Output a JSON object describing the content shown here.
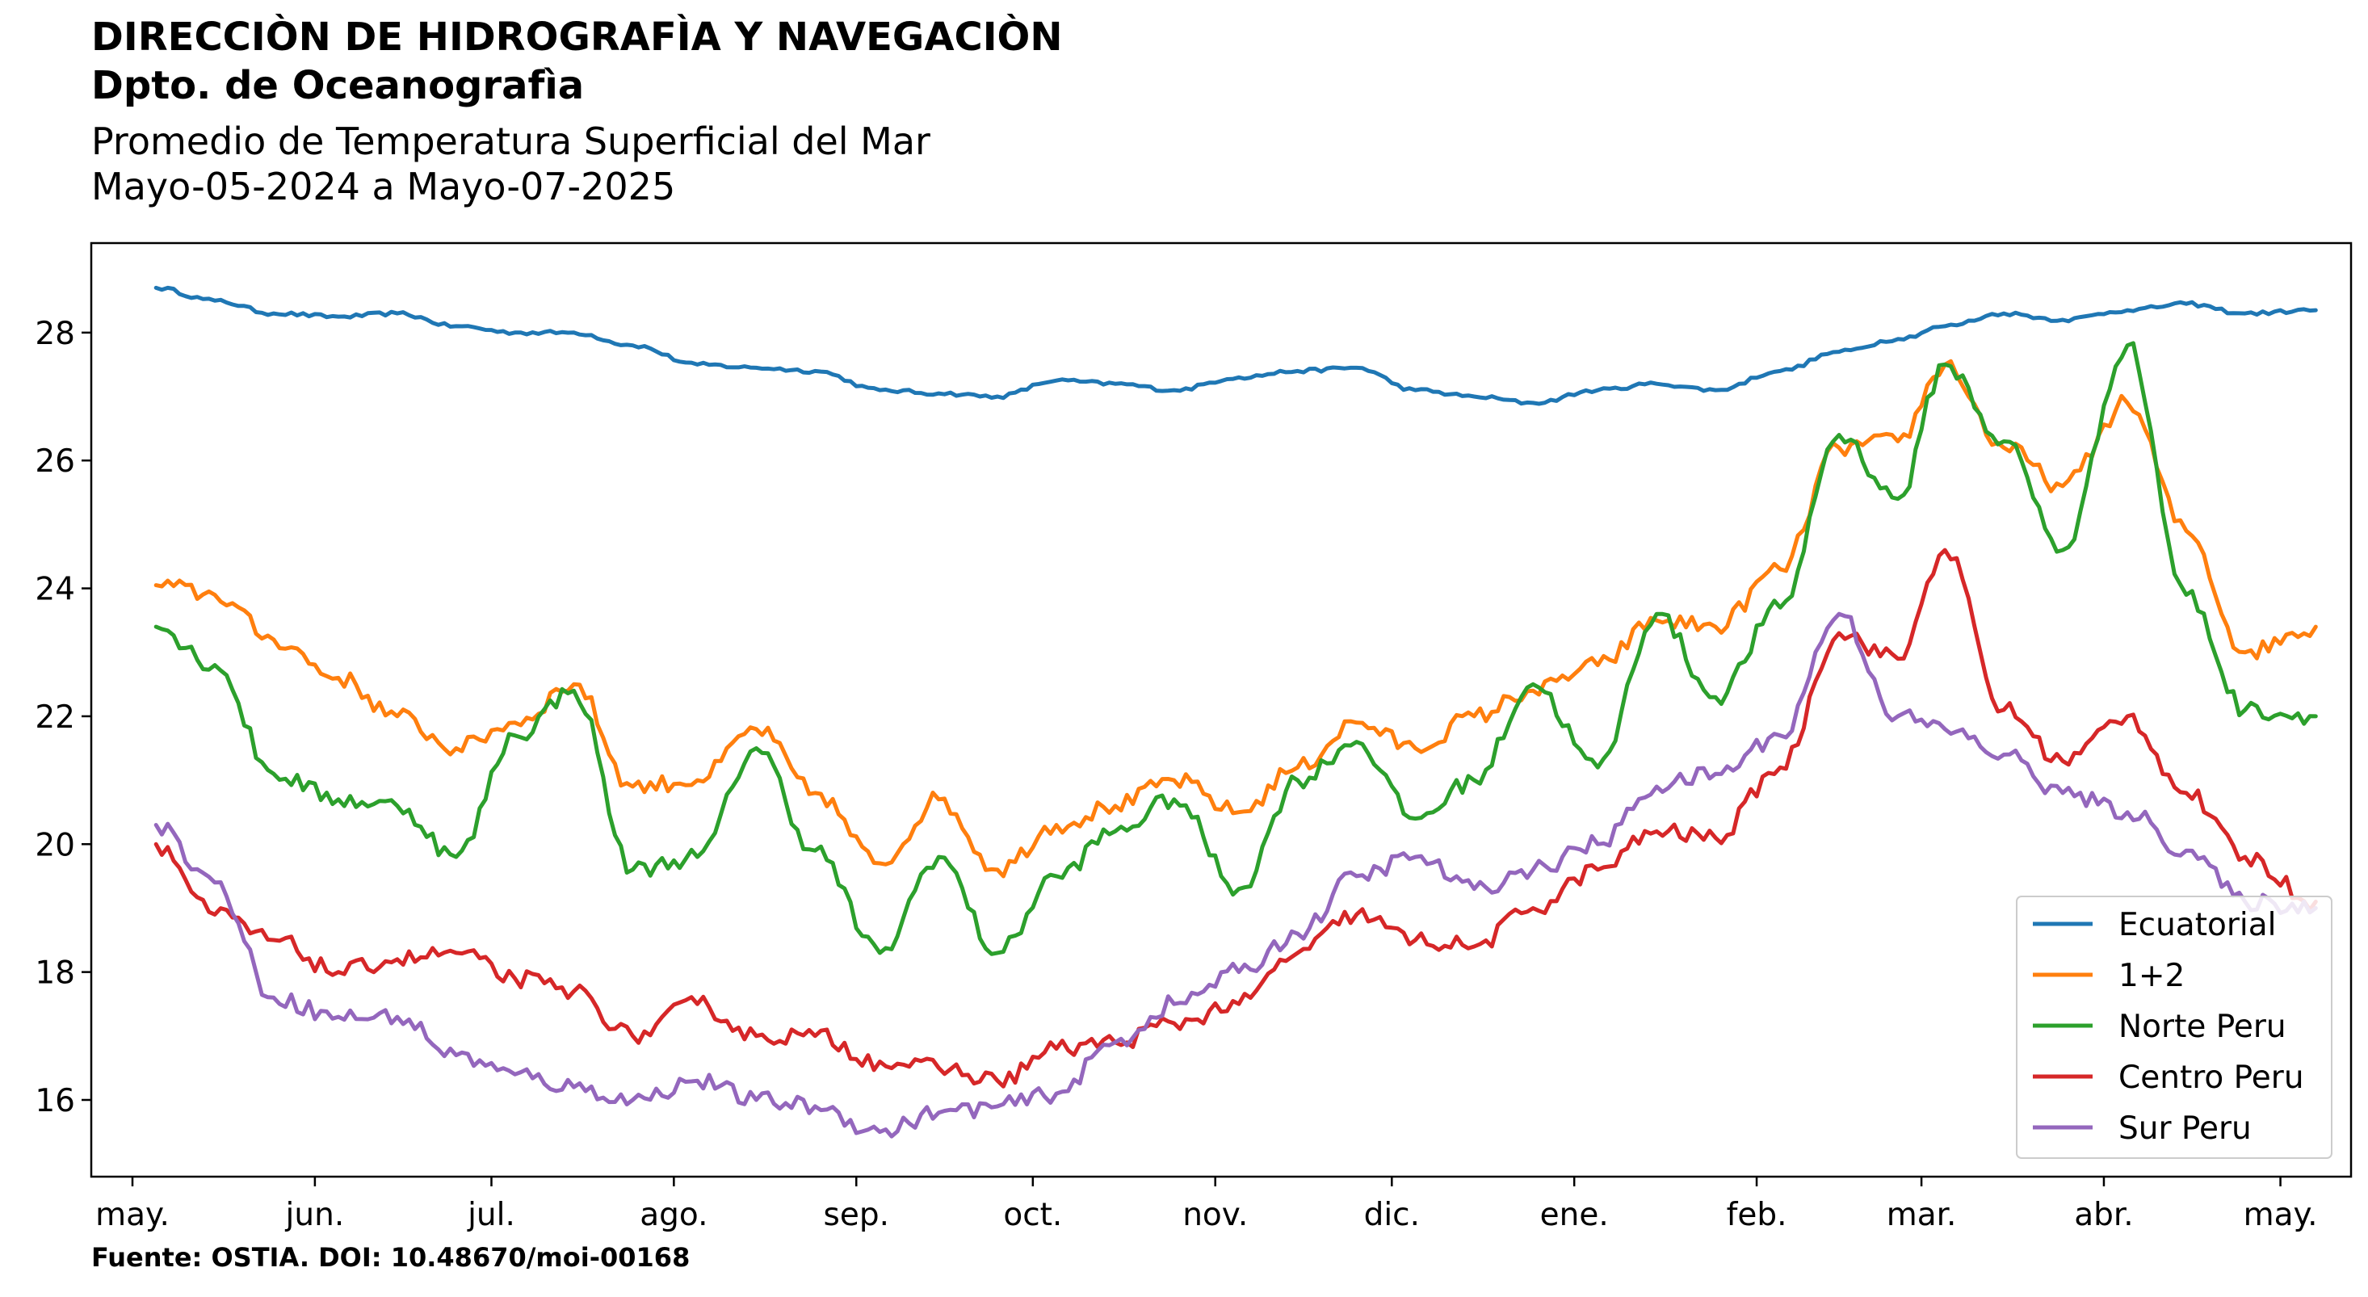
{
  "header": {
    "line1": "DIRECCIÒN DE HIDROGRAFÌA Y NAVEGACIÒN",
    "line2": "Dpto. de Oceanografìa",
    "line3": "Promedio de Temperatura Superficial del Mar",
    "line4": "Mayo-05-2024 a Mayo-07-2025"
  },
  "footer": {
    "source": "Fuente: OSTIA. DOI: 10.48670/moi-00168"
  },
  "chart_data": {
    "type": "line",
    "title": "Promedio de Temperatura Superficial del Mar",
    "subtitle": "Mayo-05-2024 a Mayo-07-2025",
    "xlabel": "",
    "ylabel": "",
    "x_range": [
      "2024-04-24",
      "2025-05-13"
    ],
    "ylim": [
      14.8,
      29.4
    ],
    "yticks": [
      16,
      18,
      20,
      22,
      24,
      26,
      28
    ],
    "xtick_dates": [
      "2024-05-01",
      "2024-06-01",
      "2024-07-01",
      "2024-08-01",
      "2024-09-01",
      "2024-10-01",
      "2024-11-01",
      "2024-12-01",
      "2025-01-01",
      "2025-02-01",
      "2025-03-01",
      "2025-04-01",
      "2025-05-01"
    ],
    "xtick_labels": [
      "may.",
      "jun.",
      "jul.",
      "ago.",
      "sep.",
      "oct.",
      "nov.",
      "dic.",
      "ene.",
      "feb.",
      "mar.",
      "abr.",
      "may."
    ],
    "grid": false,
    "legend_position": "bottom-right",
    "x": [
      "2024-05-05",
      "2024-05-15",
      "2024-05-25",
      "2024-06-05",
      "2024-06-15",
      "2024-06-25",
      "2024-07-05",
      "2024-07-15",
      "2024-07-25",
      "2024-08-05",
      "2024-08-15",
      "2024-08-25",
      "2024-09-05",
      "2024-09-15",
      "2024-09-25",
      "2024-10-05",
      "2024-10-15",
      "2024-10-25",
      "2024-11-05",
      "2024-11-15",
      "2024-11-25",
      "2024-12-05",
      "2024-12-15",
      "2024-12-25",
      "2025-01-05",
      "2025-01-15",
      "2025-01-25",
      "2025-02-05",
      "2025-02-15",
      "2025-02-25",
      "2025-03-05",
      "2025-03-15",
      "2025-03-25",
      "2025-04-05",
      "2025-04-15",
      "2025-04-25",
      "2025-05-07"
    ],
    "series": [
      {
        "name": "Ecuatorial",
        "color": "#1f77b4",
        "values": [
          28.7,
          28.5,
          28.3,
          28.25,
          28.3,
          28.1,
          28.0,
          28.0,
          27.8,
          27.5,
          27.45,
          27.4,
          27.1,
          27.05,
          27.0,
          27.25,
          27.2,
          27.1,
          27.3,
          27.4,
          27.45,
          27.1,
          27.0,
          26.9,
          27.1,
          27.2,
          27.1,
          27.4,
          27.7,
          27.9,
          28.1,
          28.3,
          28.2,
          28.35,
          28.45,
          28.3,
          28.35
        ]
      },
      {
        "name": "1+2",
        "color": "#ff7f0e",
        "values": [
          24.05,
          23.9,
          23.2,
          22.6,
          22.0,
          21.5,
          21.9,
          22.5,
          20.9,
          21.0,
          21.8,
          20.8,
          19.7,
          20.7,
          19.6,
          20.3,
          20.6,
          21.0,
          20.5,
          21.2,
          21.9,
          21.5,
          22.0,
          22.4,
          22.8,
          23.5,
          23.4,
          24.3,
          26.2,
          26.3,
          27.5,
          26.2,
          25.6,
          26.9,
          24.9,
          23.0,
          23.4
        ]
      },
      {
        "name": "Norte Peru",
        "color": "#2ca02c",
        "values": [
          23.4,
          22.8,
          21.1,
          20.7,
          20.6,
          19.8,
          21.7,
          22.4,
          19.6,
          19.8,
          21.5,
          19.9,
          18.3,
          19.8,
          18.3,
          19.5,
          20.2,
          20.7,
          19.3,
          21.0,
          21.6,
          20.4,
          21.0,
          22.5,
          21.2,
          23.6,
          22.3,
          23.7,
          26.4,
          25.4,
          27.5,
          26.3,
          24.6,
          27.8,
          23.9,
          22.1,
          22.0
        ]
      },
      {
        "name": "Centro Peru",
        "color": "#d62728",
        "values": [
          20.0,
          18.9,
          18.5,
          18.0,
          18.2,
          18.3,
          17.9,
          17.7,
          17.0,
          17.5,
          17.0,
          17.0,
          16.6,
          16.5,
          16.3,
          16.8,
          16.9,
          17.2,
          17.5,
          18.3,
          18.9,
          18.5,
          18.4,
          19.0,
          19.6,
          20.2,
          20.1,
          21.2,
          23.3,
          22.9,
          24.6,
          22.1,
          21.3,
          22.0,
          20.8,
          19.8,
          19.1
        ]
      },
      {
        "name": "Sur Peru",
        "color": "#9467bd",
        "values": [
          20.3,
          19.4,
          17.6,
          17.3,
          17.3,
          16.7,
          16.4,
          16.2,
          16.0,
          16.3,
          16.0,
          15.9,
          15.5,
          15.8,
          15.9,
          16.1,
          16.9,
          17.5,
          18.0,
          18.6,
          19.5,
          19.8,
          19.3,
          19.6,
          20.0,
          20.9,
          21.1,
          21.7,
          23.6,
          22.0,
          21.8,
          21.4,
          20.8,
          20.5,
          19.9,
          19.1,
          19.0
        ]
      }
    ]
  }
}
